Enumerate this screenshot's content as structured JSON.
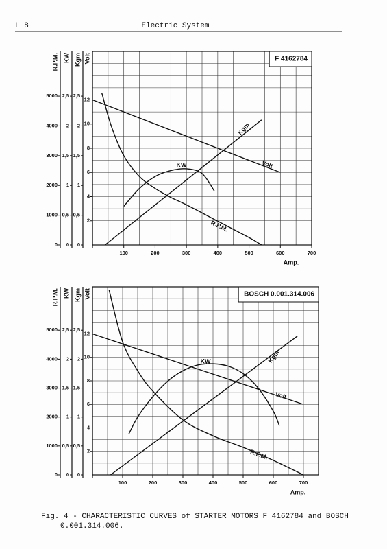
{
  "header": {
    "page": "L 8",
    "title": "Electric System"
  },
  "chart_data": [
    {
      "type": "line",
      "title": "F 4162784",
      "xlabel": "Amp.",
      "xlim": [
        0,
        700
      ],
      "xticks": [
        100,
        200,
        300,
        400,
        500,
        600,
        700
      ],
      "x_grid": [
        0,
        50,
        100,
        150,
        200,
        250,
        300,
        350,
        400,
        450,
        500,
        550,
        600,
        650,
        700
      ],
      "axes": [
        {
          "title": "R.P.M.",
          "lim": [
            0,
            6500
          ],
          "ticks": [
            0,
            1000,
            2000,
            3000,
            4000,
            5000
          ]
        },
        {
          "title": "KW",
          "lim": [
            0,
            3.25
          ],
          "ticks": [
            0,
            {
              "value": 0.5,
              "label": "0,5"
            },
            1,
            {
              "value": 1.5,
              "label": "1,5"
            },
            2,
            {
              "value": 2.5,
              "label": "2,5"
            }
          ]
        },
        {
          "title": "Kgm",
          "lim": [
            0,
            3.25
          ],
          "ticks": [
            0,
            {
              "value": 0.5,
              "label": "0,5"
            },
            1,
            {
              "value": 1.5,
              "label": "1,5"
            },
            2,
            {
              "value": 2.5,
              "label": "2,5"
            }
          ]
        },
        {
          "title": "Volt",
          "lim": [
            0,
            16
          ],
          "ticks": [
            2,
            4,
            6,
            8,
            10,
            12
          ],
          "grid": [
            1,
            2,
            3,
            4,
            5,
            6,
            7,
            8,
            9,
            10,
            11,
            12,
            13,
            14,
            15,
            16
          ]
        }
      ],
      "series": [
        {
          "name": "Kgm",
          "axis": 2,
          "color": "#111111",
          "x": [
            40,
            540
          ],
          "values": [
            0,
            2.1
          ]
        },
        {
          "name": "KW",
          "axis": 1,
          "color": "#111111",
          "x": [
            100,
            150,
            200,
            250,
            300,
            350,
            390
          ],
          "values": [
            0.65,
            0.95,
            1.15,
            1.25,
            1.28,
            1.2,
            0.9
          ]
        },
        {
          "name": "Volt",
          "axis": 3,
          "color": "#111111",
          "x": [
            0,
            600
          ],
          "values": [
            12,
            6
          ]
        },
        {
          "name": "R.P.M.",
          "axis": 0,
          "color": "#111111",
          "x": [
            30,
            60,
            100,
            150,
            200,
            250,
            300,
            400,
            500,
            540
          ],
          "values": [
            5100,
            4000,
            3000,
            2300,
            1900,
            1600,
            1350,
            800,
            250,
            0
          ]
        }
      ]
    },
    {
      "type": "line",
      "title": "BOSCH 0.001.314.006",
      "xlabel": "Amp.",
      "xlim": [
        0,
        750
      ],
      "xticks": [
        100,
        200,
        300,
        400,
        500,
        600,
        700
      ],
      "x_grid": [
        0,
        50,
        100,
        150,
        200,
        250,
        300,
        350,
        400,
        450,
        500,
        550,
        600,
        650,
        700,
        750
      ],
      "axes": [
        {
          "title": "R.P.M.",
          "lim": [
            0,
            6500
          ],
          "ticks": [
            0,
            1000,
            2000,
            3000,
            4000,
            5000
          ]
        },
        {
          "title": "KW",
          "lim": [
            0,
            3.25
          ],
          "ticks": [
            0,
            {
              "value": 0.5,
              "label": "0,5"
            },
            1,
            {
              "value": 1.5,
              "label": "1,5"
            },
            2,
            {
              "value": 2.5,
              "label": "2,5"
            }
          ]
        },
        {
          "title": "Kgm",
          "lim": [
            0,
            3.25
          ],
          "ticks": [
            0,
            {
              "value": 0.5,
              "label": "0,5"
            },
            1,
            {
              "value": 1.5,
              "label": "1,5"
            },
            2,
            {
              "value": 2.5,
              "label": "2,5"
            }
          ]
        },
        {
          "title": "Volt",
          "lim": [
            0,
            16
          ],
          "ticks": [
            2,
            4,
            6,
            8,
            10,
            12
          ],
          "grid": [
            1,
            2,
            3,
            4,
            5,
            6,
            7,
            8,
            9,
            10,
            11,
            12,
            13,
            14,
            15,
            16
          ]
        }
      ],
      "series": [
        {
          "name": "Kgm",
          "axis": 2,
          "color": "#111111",
          "x": [
            60,
            680
          ],
          "values": [
            0,
            2.4
          ]
        },
        {
          "name": "KW",
          "axis": 1,
          "color": "#111111",
          "x": [
            120,
            150,
            200,
            250,
            300,
            350,
            400,
            450,
            500,
            550,
            600,
            620
          ],
          "values": [
            0.7,
            1.0,
            1.35,
            1.62,
            1.8,
            1.9,
            1.92,
            1.88,
            1.75,
            1.5,
            1.1,
            0.85
          ]
        },
        {
          "name": "Volt",
          "axis": 3,
          "color": "#111111",
          "x": [
            0,
            700
          ],
          "values": [
            12,
            6
          ]
        },
        {
          "name": "R.P.M.",
          "axis": 0,
          "color": "#111111",
          "x": [
            55,
            100,
            150,
            200,
            300,
            400,
            500,
            600,
            700
          ],
          "values": [
            6400,
            4600,
            3600,
            2900,
            1900,
            1350,
            950,
            500,
            0
          ]
        }
      ]
    }
  ],
  "caption": [
    "Fig. 4 - CHARACTERISTIC CURVES of STARTER MOTORS F 4162784 and BOSCH",
    "0.001.314.006."
  ]
}
